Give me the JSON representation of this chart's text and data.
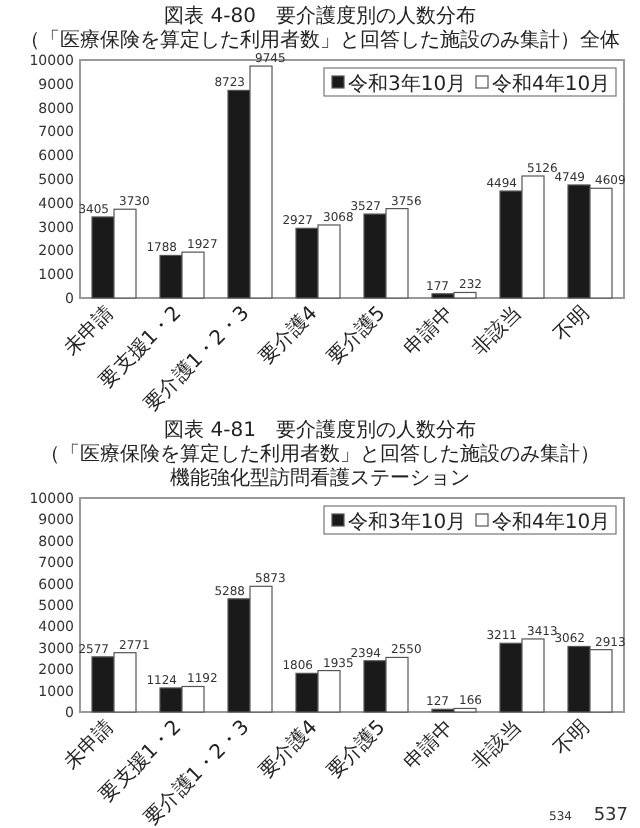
{
  "chart_data": [
    {
      "type": "bar",
      "title": "図表 4-80　要介護度別の人数分布",
      "subtitle": "（「医療保険を算定した利用者数」と回答した施設のみ集計）全体",
      "categories": [
        "未申請",
        "要支援1・2",
        "要介護1・2・3",
        "要介護4",
        "要介護5",
        "申請中",
        "非該当",
        "不明"
      ],
      "series": [
        {
          "name": "令和3年10月",
          "color": "#1a1a1a",
          "values": [
            3405,
            1788,
            8723,
            2927,
            3527,
            177,
            4494,
            4749
          ]
        },
        {
          "name": "令和4年10月",
          "color": "#ffffff",
          "values": [
            3730,
            1927,
            9745,
            3068,
            3756,
            232,
            5126,
            4609
          ]
        }
      ],
      "ylim": [
        0,
        10000
      ],
      "yticks": [
        0,
        1000,
        2000,
        3000,
        4000,
        5000,
        6000,
        7000,
        8000,
        9000,
        10000
      ],
      "data_labels": true,
      "legend": "top right",
      "grid": false
    },
    {
      "type": "bar",
      "title": "図表 4-81　要介護度別の人数分布",
      "subtitle": "（「医療保険を算定した利用者数」と回答した施設のみ集計）",
      "categories": [
        "未申請",
        "要支援1・2",
        "要介護1・2・3",
        "要介護4",
        "要介護5",
        "申請中",
        "非該当",
        "不明"
      ],
      "series": [
        {
          "name": "令和3年10月",
          "color": "#1a1a1a",
          "values": [
            2577,
            1124,
            5288,
            1806,
            2394,
            127,
            3211,
            3062
          ]
        },
        {
          "name": "令和4年10月",
          "color": "#ffffff",
          "values": [
            2771,
            1192,
            5873,
            1935,
            2550,
            166,
            3413,
            2913
          ]
        }
      ],
      "ylim": [
        0,
        10000
      ],
      "yticks": [
        0,
        1000,
        2000,
        3000,
        4000,
        5000,
        6000,
        7000,
        8000,
        9000,
        10000
      ],
      "data_labels": true,
      "legend": "top right",
      "grid": false,
      "annotations": [
        "機能強化型訪問看護ステーション",
        "534",
        "537"
      ]
    }
  ]
}
